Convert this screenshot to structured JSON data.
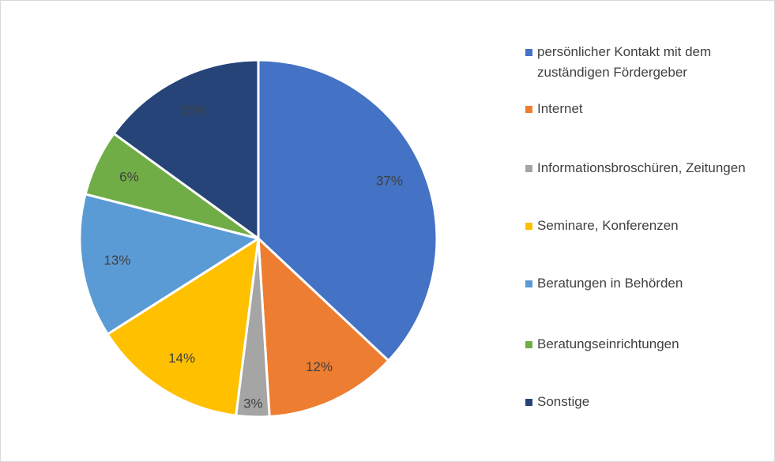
{
  "chart_data": {
    "type": "pie",
    "categories": [
      "persönlicher Kontakt mit dem zuständigen Fördergeber",
      "Internet",
      "Informationsbroschüren, Zeitungen",
      "Seminare, Konferenzen",
      "Beratungen in Behörden",
      "Beratungseinrichtungen",
      "Sonstige"
    ],
    "values": [
      37,
      12,
      3,
      14,
      13,
      6,
      15
    ],
    "value_labels": [
      "37%",
      "12%",
      "3%",
      "14%",
      "13%",
      "6%",
      "15%"
    ],
    "colors": [
      "#4472c4",
      "#ed7d31",
      "#a5a5a5",
      "#ffc000",
      "#5b9bd5",
      "#70ad47",
      "#264478"
    ],
    "legend": "right"
  }
}
